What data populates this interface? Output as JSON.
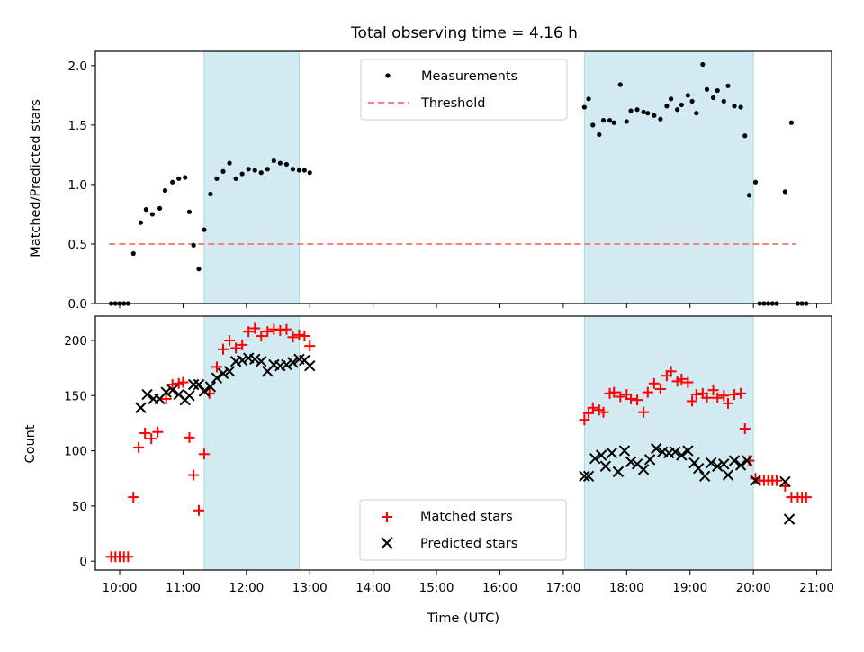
{
  "chart_data": [
    {
      "type": "scatter",
      "title": "Total observing time = 4.16 h",
      "ylabel": "Matched/Predicted stars",
      "ylim": [
        0,
        2.12
      ],
      "yticks": [
        "0.0",
        "0.5",
        "1.0",
        "1.5",
        "2.0"
      ],
      "xlim": [
        "09:37",
        "21:14"
      ],
      "shaded_intervals": [
        [
          "11:20",
          "12:50"
        ],
        [
          "17:20",
          "20:00"
        ]
      ],
      "shade_color": "#add8e6",
      "legend": {
        "placement": "top-center",
        "entries": [
          "Measurements",
          "Threshold"
        ]
      },
      "threshold": {
        "name": "Threshold",
        "y": 0.5,
        "x_range": [
          "09:50",
          "20:40"
        ],
        "color": "#ff7f7f",
        "style": "dashed"
      },
      "series": [
        {
          "name": "Measurements",
          "color": "#000000",
          "marker": "dot",
          "points": [
            [
              "09:52",
              0
            ],
            [
              "09:56",
              0
            ],
            [
              "10:00",
              0
            ],
            [
              "10:04",
              0
            ],
            [
              "10:08",
              0
            ],
            [
              "10:13",
              0.42
            ],
            [
              "10:20",
              0.68
            ],
            [
              "10:25",
              0.79
            ],
            [
              "10:31",
              0.75
            ],
            [
              "10:38",
              0.8
            ],
            [
              "10:43",
              0.95
            ],
            [
              "10:50",
              1.02
            ],
            [
              "10:56",
              1.05
            ],
            [
              "11:02",
              1.06
            ],
            [
              "11:06",
              0.77
            ],
            [
              "11:10",
              0.49
            ],
            [
              "11:15",
              0.29
            ],
            [
              "11:20",
              0.62
            ],
            [
              "11:26",
              0.92
            ],
            [
              "11:32",
              1.05
            ],
            [
              "11:38",
              1.11
            ],
            [
              "11:44",
              1.18
            ],
            [
              "11:50",
              1.05
            ],
            [
              "11:56",
              1.09
            ],
            [
              "12:02",
              1.13
            ],
            [
              "12:08",
              1.12
            ],
            [
              "12:14",
              1.1
            ],
            [
              "12:20",
              1.13
            ],
            [
              "12:26",
              1.2
            ],
            [
              "12:32",
              1.18
            ],
            [
              "12:38",
              1.17
            ],
            [
              "12:44",
              1.13
            ],
            [
              "12:50",
              1.12
            ],
            [
              "12:55",
              1.12
            ],
            [
              "13:00",
              1.1
            ],
            [
              "17:20",
              1.65
            ],
            [
              "17:24",
              1.72
            ],
            [
              "17:28",
              1.5
            ],
            [
              "17:34",
              1.42
            ],
            [
              "17:38",
              1.54
            ],
            [
              "17:44",
              1.54
            ],
            [
              "17:48",
              1.52
            ],
            [
              "17:54",
              1.84
            ],
            [
              "18:00",
              1.53
            ],
            [
              "18:04",
              1.62
            ],
            [
              "18:10",
              1.63
            ],
            [
              "18:16",
              1.61
            ],
            [
              "18:20",
              1.6
            ],
            [
              "18:26",
              1.58
            ],
            [
              "18:32",
              1.55
            ],
            [
              "18:38",
              1.66
            ],
            [
              "18:42",
              1.72
            ],
            [
              "18:48",
              1.63
            ],
            [
              "18:52",
              1.67
            ],
            [
              "18:58",
              1.75
            ],
            [
              "19:02",
              1.7
            ],
            [
              "19:06",
              1.6
            ],
            [
              "19:12",
              2.01
            ],
            [
              "19:16",
              1.8
            ],
            [
              "19:22",
              1.73
            ],
            [
              "19:26",
              1.79
            ],
            [
              "19:32",
              1.7
            ],
            [
              "19:36",
              1.83
            ],
            [
              "19:42",
              1.66
            ],
            [
              "19:48",
              1.65
            ],
            [
              "19:52",
              1.41
            ],
            [
              "19:56",
              0.91
            ],
            [
              "20:02",
              1.02
            ],
            [
              "20:06",
              0
            ],
            [
              "20:10",
              0
            ],
            [
              "20:14",
              0
            ],
            [
              "20:18",
              0
            ],
            [
              "20:22",
              0
            ],
            [
              "20:30",
              0.94
            ],
            [
              "20:36",
              1.52
            ],
            [
              "20:42",
              0
            ],
            [
              "20:46",
              0
            ],
            [
              "20:50",
              0
            ]
          ]
        }
      ]
    },
    {
      "type": "scatter",
      "xlabel": "Time (UTC)",
      "ylabel": "Count",
      "ylim": [
        -8,
        222
      ],
      "yticks": [
        "0",
        "50",
        "100",
        "150",
        "200"
      ],
      "xlim": [
        "09:37",
        "21:14"
      ],
      "xticks": [
        "10:00",
        "11:00",
        "12:00",
        "13:00",
        "14:00",
        "15:00",
        "16:00",
        "17:00",
        "18:00",
        "19:00",
        "20:00",
        "21:00"
      ],
      "shaded_intervals": [
        [
          "11:20",
          "12:50"
        ],
        [
          "17:20",
          "20:00"
        ]
      ],
      "shade_color": "#add8e6",
      "legend": {
        "placement": "bottom-center",
        "entries": [
          "Matched stars",
          "Predicted stars"
        ]
      },
      "series": [
        {
          "name": "Matched stars",
          "color": "#ff0000",
          "marker": "plus",
          "points": [
            [
              "09:52",
              4
            ],
            [
              "09:56",
              4
            ],
            [
              "10:00",
              4
            ],
            [
              "10:04",
              4
            ],
            [
              "10:08",
              4
            ],
            [
              "10:13",
              58
            ],
            [
              "10:18",
              103
            ],
            [
              "10:24",
              116
            ],
            [
              "10:30",
              111
            ],
            [
              "10:36",
              117
            ],
            [
              "10:44",
              147
            ],
            [
              "10:50",
              160
            ],
            [
              "10:56",
              161
            ],
            [
              "11:00",
              162
            ],
            [
              "11:06",
              112
            ],
            [
              "11:10",
              78
            ],
            [
              "11:15",
              46
            ],
            [
              "11:20",
              97
            ],
            [
              "11:25",
              152
            ],
            [
              "11:32",
              176
            ],
            [
              "11:38",
              192
            ],
            [
              "11:44",
              200
            ],
            [
              "11:50",
              193
            ],
            [
              "11:56",
              196
            ],
            [
              "12:02",
              208
            ],
            [
              "12:08",
              211
            ],
            [
              "12:14",
              204
            ],
            [
              "12:20",
              208
            ],
            [
              "12:26",
              210
            ],
            [
              "12:32",
              209
            ],
            [
              "12:38",
              210
            ],
            [
              "12:44",
              203
            ],
            [
              "12:50",
              205
            ],
            [
              "12:55",
              204
            ],
            [
              "13:00",
              195
            ],
            [
              "17:20",
              128
            ],
            [
              "17:24",
              134
            ],
            [
              "17:28",
              139
            ],
            [
              "17:34",
              137
            ],
            [
              "17:38",
              135
            ],
            [
              "17:44",
              152
            ],
            [
              "17:48",
              153
            ],
            [
              "17:54",
              149
            ],
            [
              "18:00",
              151
            ],
            [
              "18:04",
              147
            ],
            [
              "18:10",
              146
            ],
            [
              "18:16",
              135
            ],
            [
              "18:20",
              153
            ],
            [
              "18:26",
              161
            ],
            [
              "18:32",
              156
            ],
            [
              "18:38",
              168
            ],
            [
              "18:42",
              172
            ],
            [
              "18:48",
              163
            ],
            [
              "18:52",
              165
            ],
            [
              "18:58",
              162
            ],
            [
              "19:02",
              145
            ],
            [
              "19:06",
              151
            ],
            [
              "19:12",
              152
            ],
            [
              "19:16",
              148
            ],
            [
              "19:22",
              155
            ],
            [
              "19:26",
              148
            ],
            [
              "19:32",
              150
            ],
            [
              "19:36",
              143
            ],
            [
              "19:42",
              151
            ],
            [
              "19:48",
              152
            ],
            [
              "19:52",
              120
            ],
            [
              "19:56",
              91
            ],
            [
              "20:02",
              75
            ],
            [
              "20:06",
              73
            ],
            [
              "20:10",
              73
            ],
            [
              "20:14",
              73
            ],
            [
              "20:18",
              73
            ],
            [
              "20:22",
              73
            ],
            [
              "20:30",
              68
            ],
            [
              "20:36",
              58
            ],
            [
              "20:42",
              58
            ],
            [
              "20:46",
              58
            ],
            [
              "20:50",
              58
            ]
          ]
        },
        {
          "name": "Predicted stars",
          "color": "#000000",
          "marker": "x",
          "points": [
            [
              "10:20",
              139
            ],
            [
              "10:26",
              151
            ],
            [
              "10:32",
              147
            ],
            [
              "10:38",
              147
            ],
            [
              "10:44",
              153
            ],
            [
              "10:50",
              155
            ],
            [
              "10:56",
              151
            ],
            [
              "11:02",
              146
            ],
            [
              "11:06",
              150
            ],
            [
              "11:10",
              160
            ],
            [
              "11:15",
              160
            ],
            [
              "11:20",
              154
            ],
            [
              "11:26",
              158
            ],
            [
              "11:32",
              166
            ],
            [
              "11:38",
              170
            ],
            [
              "11:44",
              172
            ],
            [
              "11:50",
              181
            ],
            [
              "11:56",
              182
            ],
            [
              "12:02",
              184
            ],
            [
              "12:08",
              183
            ],
            [
              "12:14",
              181
            ],
            [
              "12:20",
              172
            ],
            [
              "12:26",
              178
            ],
            [
              "12:32",
              177
            ],
            [
              "12:38",
              178
            ],
            [
              "12:44",
              180
            ],
            [
              "12:50",
              183
            ],
            [
              "12:55",
              182
            ],
            [
              "13:00",
              177
            ],
            [
              "17:20",
              77
            ],
            [
              "17:24",
              77
            ],
            [
              "17:30",
              93
            ],
            [
              "17:36",
              96
            ],
            [
              "17:40",
              86
            ],
            [
              "17:46",
              98
            ],
            [
              "17:52",
              81
            ],
            [
              "17:58",
              100
            ],
            [
              "18:04",
              90
            ],
            [
              "18:10",
              88
            ],
            [
              "18:16",
              83
            ],
            [
              "18:22",
              92
            ],
            [
              "18:28",
              102
            ],
            [
              "18:34",
              99
            ],
            [
              "18:40",
              98
            ],
            [
              "18:46",
              99
            ],
            [
              "18:52",
              96
            ],
            [
              "18:58",
              100
            ],
            [
              "19:04",
              89
            ],
            [
              "19:08",
              84
            ],
            [
              "19:14",
              77
            ],
            [
              "19:20",
              89
            ],
            [
              "19:26",
              86
            ],
            [
              "19:32",
              88
            ],
            [
              "19:36",
              78
            ],
            [
              "19:42",
              91
            ],
            [
              "19:48",
              87
            ],
            [
              "19:54",
              91
            ],
            [
              "20:02",
              73
            ],
            [
              "20:30",
              72
            ],
            [
              "20:34",
              38
            ]
          ]
        }
      ]
    }
  ]
}
